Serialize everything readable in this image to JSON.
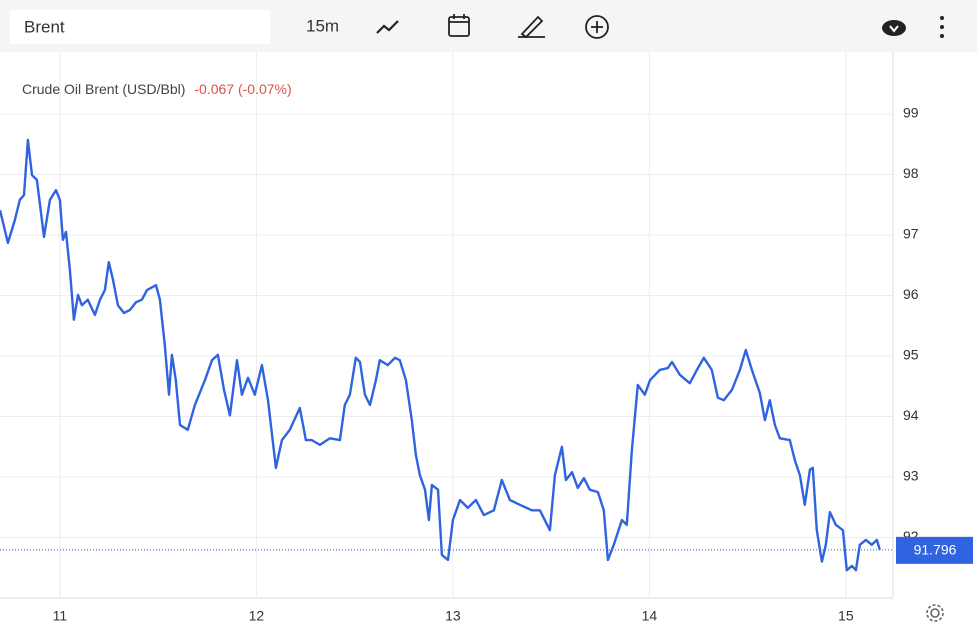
{
  "toolbar": {
    "symbol": "Brent",
    "interval": "15m"
  },
  "chart_data": {
    "type": "line",
    "title": "Crude Oil Brent (USD/Bbl)",
    "change_text": "-0.067 (-0.07%)",
    "x": [
      10.695,
      10.735,
      10.771,
      10.796,
      10.817,
      10.837,
      10.858,
      10.883,
      10.919,
      10.949,
      10.98,
      11.0,
      11.015,
      11.031,
      11.051,
      11.071,
      11.092,
      11.112,
      11.142,
      11.178,
      11.204,
      11.229,
      11.249,
      11.27,
      11.295,
      11.326,
      11.356,
      11.387,
      11.417,
      11.443,
      11.489,
      11.509,
      11.534,
      11.555,
      11.57,
      11.59,
      11.611,
      11.651,
      11.687,
      11.738,
      11.774,
      11.804,
      11.835,
      11.865,
      11.901,
      11.926,
      11.957,
      11.992,
      12.028,
      12.059,
      12.099,
      12.13,
      12.17,
      12.221,
      12.252,
      12.282,
      12.323,
      12.374,
      12.425,
      12.45,
      12.476,
      12.506,
      12.527,
      12.552,
      12.578,
      12.608,
      12.628,
      12.669,
      12.705,
      12.73,
      12.761,
      12.791,
      12.812,
      12.832,
      12.858,
      12.878,
      12.893,
      12.924,
      12.944,
      12.975,
      13.0,
      13.036,
      13.076,
      13.117,
      13.158,
      13.209,
      13.249,
      13.29,
      13.341,
      13.402,
      13.443,
      13.494,
      13.519,
      13.555,
      13.575,
      13.606,
      13.636,
      13.667,
      13.697,
      13.738,
      13.768,
      13.789,
      13.819,
      13.86,
      13.885,
      13.911,
      13.941,
      13.977,
      14.003,
      14.053,
      14.094,
      14.115,
      14.155,
      14.206,
      14.242,
      14.277,
      14.318,
      14.349,
      14.379,
      14.42,
      14.461,
      14.491,
      14.522,
      14.562,
      14.588,
      14.613,
      14.639,
      14.664,
      14.715,
      14.74,
      14.766,
      14.791,
      14.817,
      14.832,
      14.852,
      14.878,
      14.898,
      14.919,
      14.949,
      14.985,
      15.005,
      15.031,
      15.051,
      15.071,
      15.102,
      15.132,
      15.158,
      15.173
    ],
    "series": [
      {
        "name": "Crude Oil Brent",
        "color": "#2f63e0",
        "values": [
          97.41,
          96.87,
          97.25,
          97.58,
          97.66,
          98.57,
          97.99,
          97.91,
          96.97,
          97.58,
          97.74,
          97.58,
          96.92,
          97.05,
          96.42,
          95.6,
          96.01,
          95.84,
          95.93,
          95.68,
          95.93,
          96.09,
          96.55,
          96.26,
          95.84,
          95.71,
          95.76,
          95.89,
          95.93,
          96.09,
          96.17,
          95.93,
          95.18,
          94.36,
          95.02,
          94.6,
          93.86,
          93.78,
          94.19,
          94.6,
          94.93,
          95.02,
          94.44,
          94.02,
          94.93,
          94.36,
          94.64,
          94.36,
          94.85,
          94.27,
          93.15,
          93.61,
          93.78,
          94.14,
          93.61,
          93.61,
          93.53,
          93.64,
          93.61,
          94.19,
          94.36,
          94.97,
          94.9,
          94.36,
          94.19,
          94.6,
          94.93,
          94.85,
          94.97,
          94.93,
          94.6,
          93.94,
          93.36,
          93.03,
          92.79,
          92.29,
          92.87,
          92.79,
          91.71,
          91.63,
          92.29,
          92.62,
          92.49,
          92.62,
          92.37,
          92.45,
          92.95,
          92.62,
          92.54,
          92.45,
          92.45,
          92.12,
          93.03,
          93.5,
          92.95,
          93.08,
          92.82,
          92.98,
          92.79,
          92.75,
          92.45,
          91.63,
          91.88,
          92.29,
          92.21,
          93.45,
          94.52,
          94.36,
          94.6,
          94.77,
          94.8,
          94.9,
          94.69,
          94.55,
          94.77,
          94.97,
          94.77,
          94.31,
          94.27,
          94.44,
          94.77,
          95.1,
          94.77,
          94.39,
          93.94,
          94.27,
          93.86,
          93.64,
          93.61,
          93.28,
          93.03,
          92.54,
          93.12,
          93.15,
          92.12,
          91.6,
          91.88,
          92.42,
          92.21,
          92.12,
          91.46,
          91.53,
          91.46,
          91.88,
          91.96,
          91.88,
          91.96,
          91.796
        ]
      }
    ],
    "xlim": [
      10.695,
      15.24
    ],
    "xticks": [
      11,
      12,
      13,
      14,
      15
    ],
    "ylim": [
      91,
      100
    ],
    "yticks": [
      92,
      93,
      94,
      95,
      96,
      97,
      98,
      99
    ],
    "grid": true
  }
}
